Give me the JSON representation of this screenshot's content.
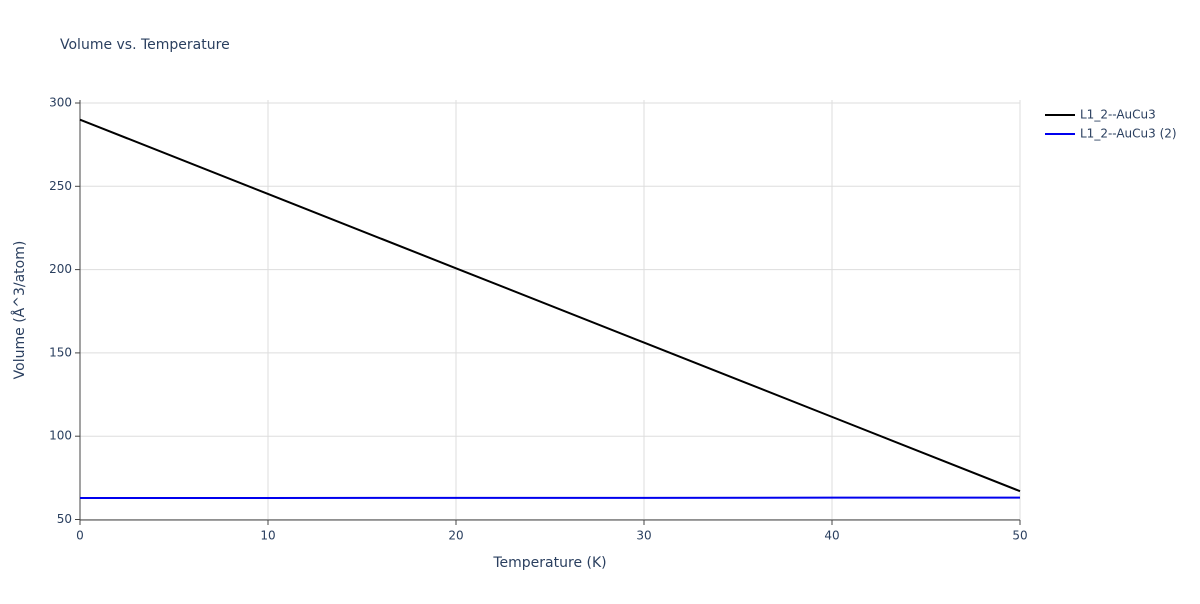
{
  "chart_data": {
    "type": "line",
    "title": "Volume vs. Temperature",
    "x_label": "Temperature (K)",
    "y_label": "Volume (Å^3/atom)",
    "x": [
      0,
      10,
      20,
      30,
      40,
      50
    ],
    "series": [
      {
        "name": "L1_2--AuCu3",
        "color": "#000000",
        "values": [
          290,
          245.4,
          200.8,
          156.2,
          111.6,
          67
        ]
      },
      {
        "name": "L1_2--AuCu3 (2)",
        "color": "#0000ee",
        "values": [
          62.9,
          62.9,
          63.0,
          63.0,
          63.1,
          63.1
        ]
      }
    ],
    "xlim": [
      0,
      50
    ],
    "xticks": [
      0,
      10,
      20,
      30,
      40,
      50
    ],
    "ylim": [
      49.7,
      301.8
    ],
    "yticks": [
      50,
      100,
      150,
      200,
      250,
      300
    ],
    "grid": true,
    "legend": "right"
  }
}
